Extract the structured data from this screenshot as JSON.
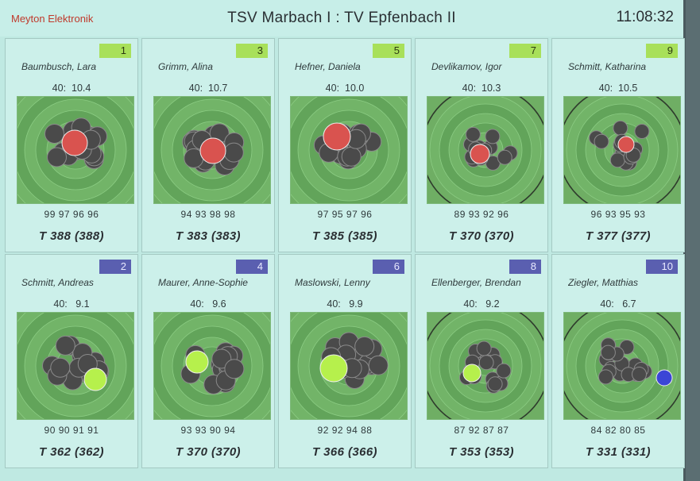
{
  "header": {
    "brand": "Meyton Elektronik",
    "title": "TSV Marbach I : TV Epfenbach II",
    "clock": "11:08:32"
  },
  "colors": {
    "home_badge": "#a8e05a",
    "away_badge": "#5a5fb0",
    "last_shot_home": "#d9534f",
    "last_shot_away_hit": "#b6f04c",
    "last_shot_away_low": "#3b46d6",
    "shot": "#4a4a4a",
    "target_green": "#6fae64"
  },
  "shooters": [
    {
      "number": "1",
      "team": "home",
      "name": "Baumbusch, Lara",
      "last_shot": "40:  10.4",
      "series": "99 97 96 96",
      "total": "T 388 (388)"
    },
    {
      "number": "3",
      "team": "home",
      "name": "Grimm, Alina",
      "last_shot": "40:  10.7",
      "series": "94 93 98 98",
      "total": "T 383 (383)"
    },
    {
      "number": "5",
      "team": "home",
      "name": "Hefner, Daniela",
      "last_shot": "40:  10.0",
      "series": "97 95 97 96",
      "total": "T 385 (385)"
    },
    {
      "number": "7",
      "team": "home",
      "name": "Devlikamov, Igor",
      "last_shot": "40:  10.3",
      "series": "89 93 92 96",
      "total": "T 370 (370)"
    },
    {
      "number": "9",
      "team": "home",
      "name": "Schmitt, Katharina",
      "last_shot": "40:  10.5",
      "series": "96 93 95 93",
      "total": "T 377 (377)"
    },
    {
      "number": "2",
      "team": "away",
      "name": "Schmitt, Andreas",
      "last_shot": "40:   9.1",
      "series": "90 90 91 91",
      "total": "T 362 (362)"
    },
    {
      "number": "4",
      "team": "away",
      "name": "Maurer, Anne-Sophie",
      "last_shot": "40:   9.6",
      "series": "93 93 90 94",
      "total": "T 370 (370)"
    },
    {
      "number": "6",
      "team": "away",
      "name": "Maslowski, Lenny",
      "last_shot": "40:   9.9",
      "series": "92 92 94 88",
      "total": "T 366 (366)"
    },
    {
      "number": "8",
      "team": "away",
      "name": "Ellenberger, Brendan",
      "last_shot": "40:   9.2",
      "series": "87 92 87 87",
      "total": "T 353 (353)"
    },
    {
      "number": "10",
      "team": "away",
      "name": "Ziegler, Matthias",
      "last_shot": "40:   6.7",
      "series": "84 82 80 85",
      "total": "T 331 (331)"
    }
  ]
}
